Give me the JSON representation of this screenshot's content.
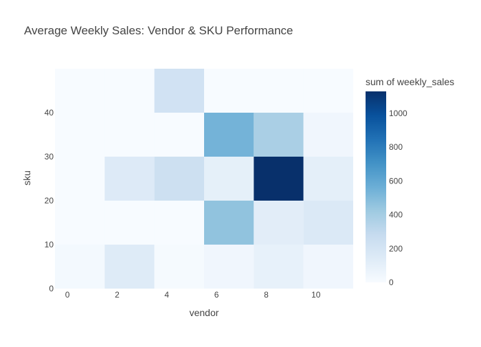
{
  "chart_data": {
    "type": "heatmap",
    "title": "Average Weekly Sales: Vendor & SKU Performance",
    "xlabel": "vendor",
    "ylabel": "sku",
    "xlim": [
      -0.5,
      11.5
    ],
    "ylim": [
      0,
      50
    ],
    "x_ticks": [
      0,
      2,
      4,
      6,
      8,
      10
    ],
    "y_ticks": [
      0,
      10,
      20,
      30,
      40
    ],
    "x_bins": [
      {
        "start": -0.5,
        "end": 1.5
      },
      {
        "start": 1.5,
        "end": 3.5
      },
      {
        "start": 3.5,
        "end": 5.5
      },
      {
        "start": 5.5,
        "end": 7.5
      },
      {
        "start": 7.5,
        "end": 9.5
      },
      {
        "start": 9.5,
        "end": 11.5
      }
    ],
    "y_bins": [
      {
        "start": 0,
        "end": 10
      },
      {
        "start": 10,
        "end": 20
      },
      {
        "start": 20,
        "end": 30
      },
      {
        "start": 30,
        "end": 40
      },
      {
        "start": 40,
        "end": 50
      }
    ],
    "z": [
      [
        20,
        140,
        10,
        40,
        90,
        40
      ],
      [
        0,
        0,
        0,
        460,
        120,
        160
      ],
      [
        0,
        150,
        240,
        100,
        1130,
        110
      ],
      [
        0,
        0,
        0,
        540,
        380,
        40
      ],
      [
        0,
        0,
        220,
        0,
        0,
        0
      ]
    ],
    "colorbar": {
      "title": "sum of weekly_sales",
      "zmin": 0,
      "zmax": 1130,
      "ticks": [
        0,
        200,
        400,
        600,
        800,
        1000
      ]
    },
    "colorscale": [
      [
        0.0,
        "#f7fbff"
      ],
      [
        0.125,
        "#deebf7"
      ],
      [
        0.25,
        "#c6dbef"
      ],
      [
        0.375,
        "#9ecae1"
      ],
      [
        0.5,
        "#6baed6"
      ],
      [
        0.625,
        "#4292c6"
      ],
      [
        0.75,
        "#2171b5"
      ],
      [
        0.875,
        "#08519c"
      ],
      [
        1.0,
        "#08306b"
      ]
    ]
  },
  "colors": {
    "text": "#444444",
    "title": "#444444"
  }
}
